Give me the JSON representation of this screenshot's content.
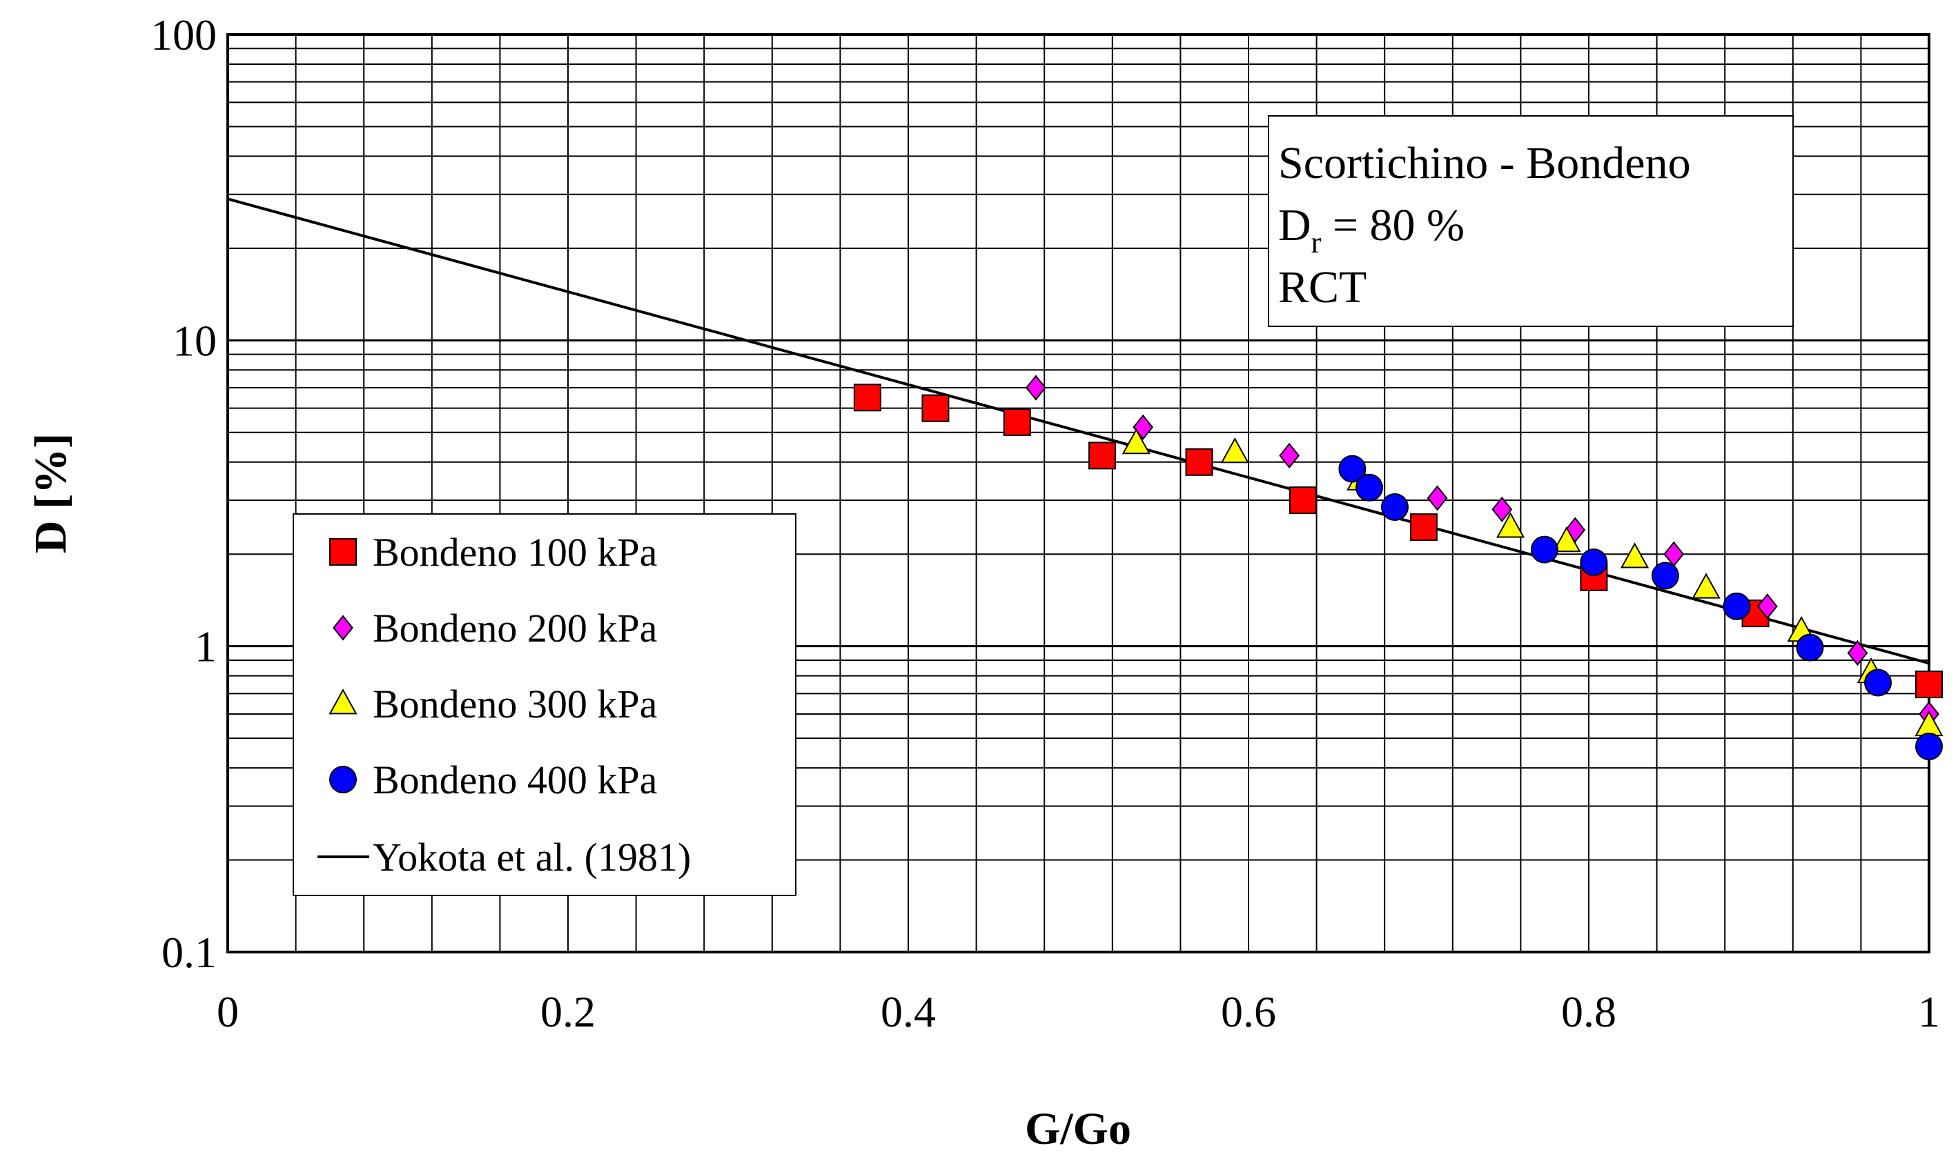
{
  "chart_data": {
    "type": "scatter",
    "xlabel": "G/Go",
    "ylabel": "D [%]",
    "xlim": [
      0,
      1
    ],
    "ylim": [
      0.1,
      100
    ],
    "yscale": "log",
    "x_ticks": [
      "0",
      "0.2",
      "0.4",
      "0.6",
      "0.8",
      "1"
    ],
    "y_ticks": [
      "0.1",
      "1",
      "10",
      "100"
    ],
    "grid": true,
    "annotation": {
      "line1": "Scortichino - Bondeno",
      "line2_main": "D",
      "line2_sub": "r",
      "line2_rest": " = 80 %",
      "line3": "RCT"
    },
    "legend_position": "center-left",
    "series": [
      {
        "name": "Bondeno 100 kPa",
        "marker": "square",
        "color": "#ff0000",
        "points": [
          [
            0.376,
            6.5
          ],
          [
            0.416,
            6.0
          ],
          [
            0.464,
            5.4
          ],
          [
            0.514,
            4.2
          ],
          [
            0.571,
            4.0
          ],
          [
            0.632,
            3.0
          ],
          [
            0.703,
            2.45
          ],
          [
            0.803,
            1.68
          ],
          [
            0.898,
            1.28
          ],
          [
            1.0,
            0.75
          ]
        ]
      },
      {
        "name": "Bondeno 200 kPa",
        "marker": "diamond",
        "color": "#ff00ff",
        "points": [
          [
            0.475,
            7.0
          ],
          [
            0.538,
            5.2
          ],
          [
            0.624,
            4.2
          ],
          [
            0.711,
            3.05
          ],
          [
            0.749,
            2.8
          ],
          [
            0.792,
            2.4
          ],
          [
            0.85,
            2.0
          ],
          [
            0.905,
            1.35
          ],
          [
            0.958,
            0.95
          ],
          [
            1.0,
            0.6
          ]
        ]
      },
      {
        "name": "Bondeno 300 kPa",
        "marker": "triangle",
        "color": "#ffff00",
        "points": [
          [
            0.534,
            4.6
          ],
          [
            0.592,
            4.3
          ],
          [
            0.666,
            3.5
          ],
          [
            0.754,
            2.45
          ],
          [
            0.787,
            2.2
          ],
          [
            0.827,
            1.95
          ],
          [
            0.869,
            1.55
          ],
          [
            0.925,
            1.12
          ],
          [
            0.966,
            0.82
          ],
          [
            1.0,
            0.55
          ]
        ]
      },
      {
        "name": "Bondeno 400 kPa",
        "marker": "circle",
        "color": "#0000ff",
        "points": [
          [
            0.661,
            3.8
          ],
          [
            0.671,
            3.3
          ],
          [
            0.686,
            2.85
          ],
          [
            0.774,
            2.07
          ],
          [
            0.803,
            1.88
          ],
          [
            0.845,
            1.7
          ],
          [
            0.887,
            1.35
          ],
          [
            0.93,
            0.99
          ],
          [
            0.97,
            0.76
          ],
          [
            1.0,
            0.47
          ]
        ]
      },
      {
        "name": "Yokota et al. (1981)",
        "marker": "line",
        "color": "#000000",
        "points": [
          [
            0.0,
            29.0
          ],
          [
            1.0,
            0.88
          ]
        ]
      }
    ]
  }
}
